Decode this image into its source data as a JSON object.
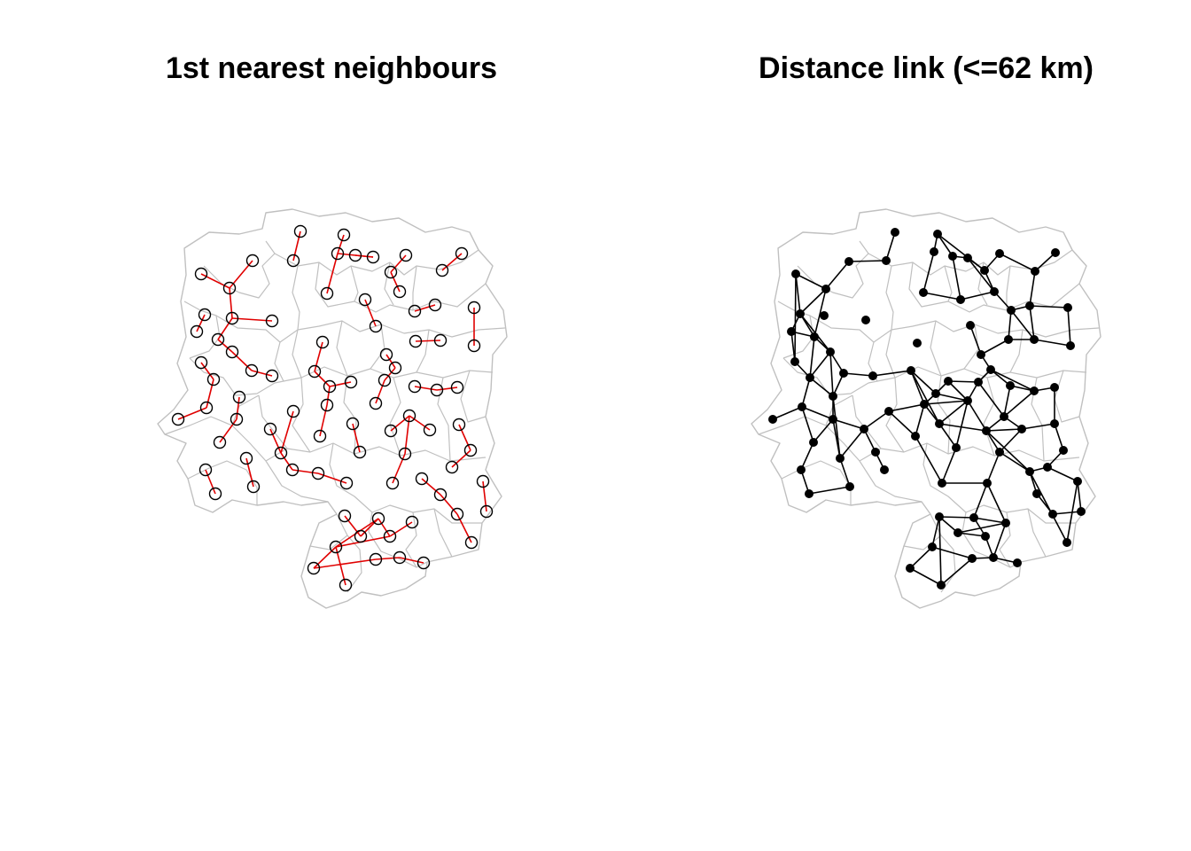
{
  "panels": {
    "left": {
      "title": "1st nearest neighbours"
    },
    "right": {
      "title": "Distance link (<=62 km)"
    }
  },
  "colors": {
    "region_outline": "#c0c0c0",
    "knn_link": "#e00000",
    "distance_link": "#000000",
    "point_stroke": "#000000",
    "background": "#ffffff"
  },
  "legend": "none",
  "axes": "none"
}
